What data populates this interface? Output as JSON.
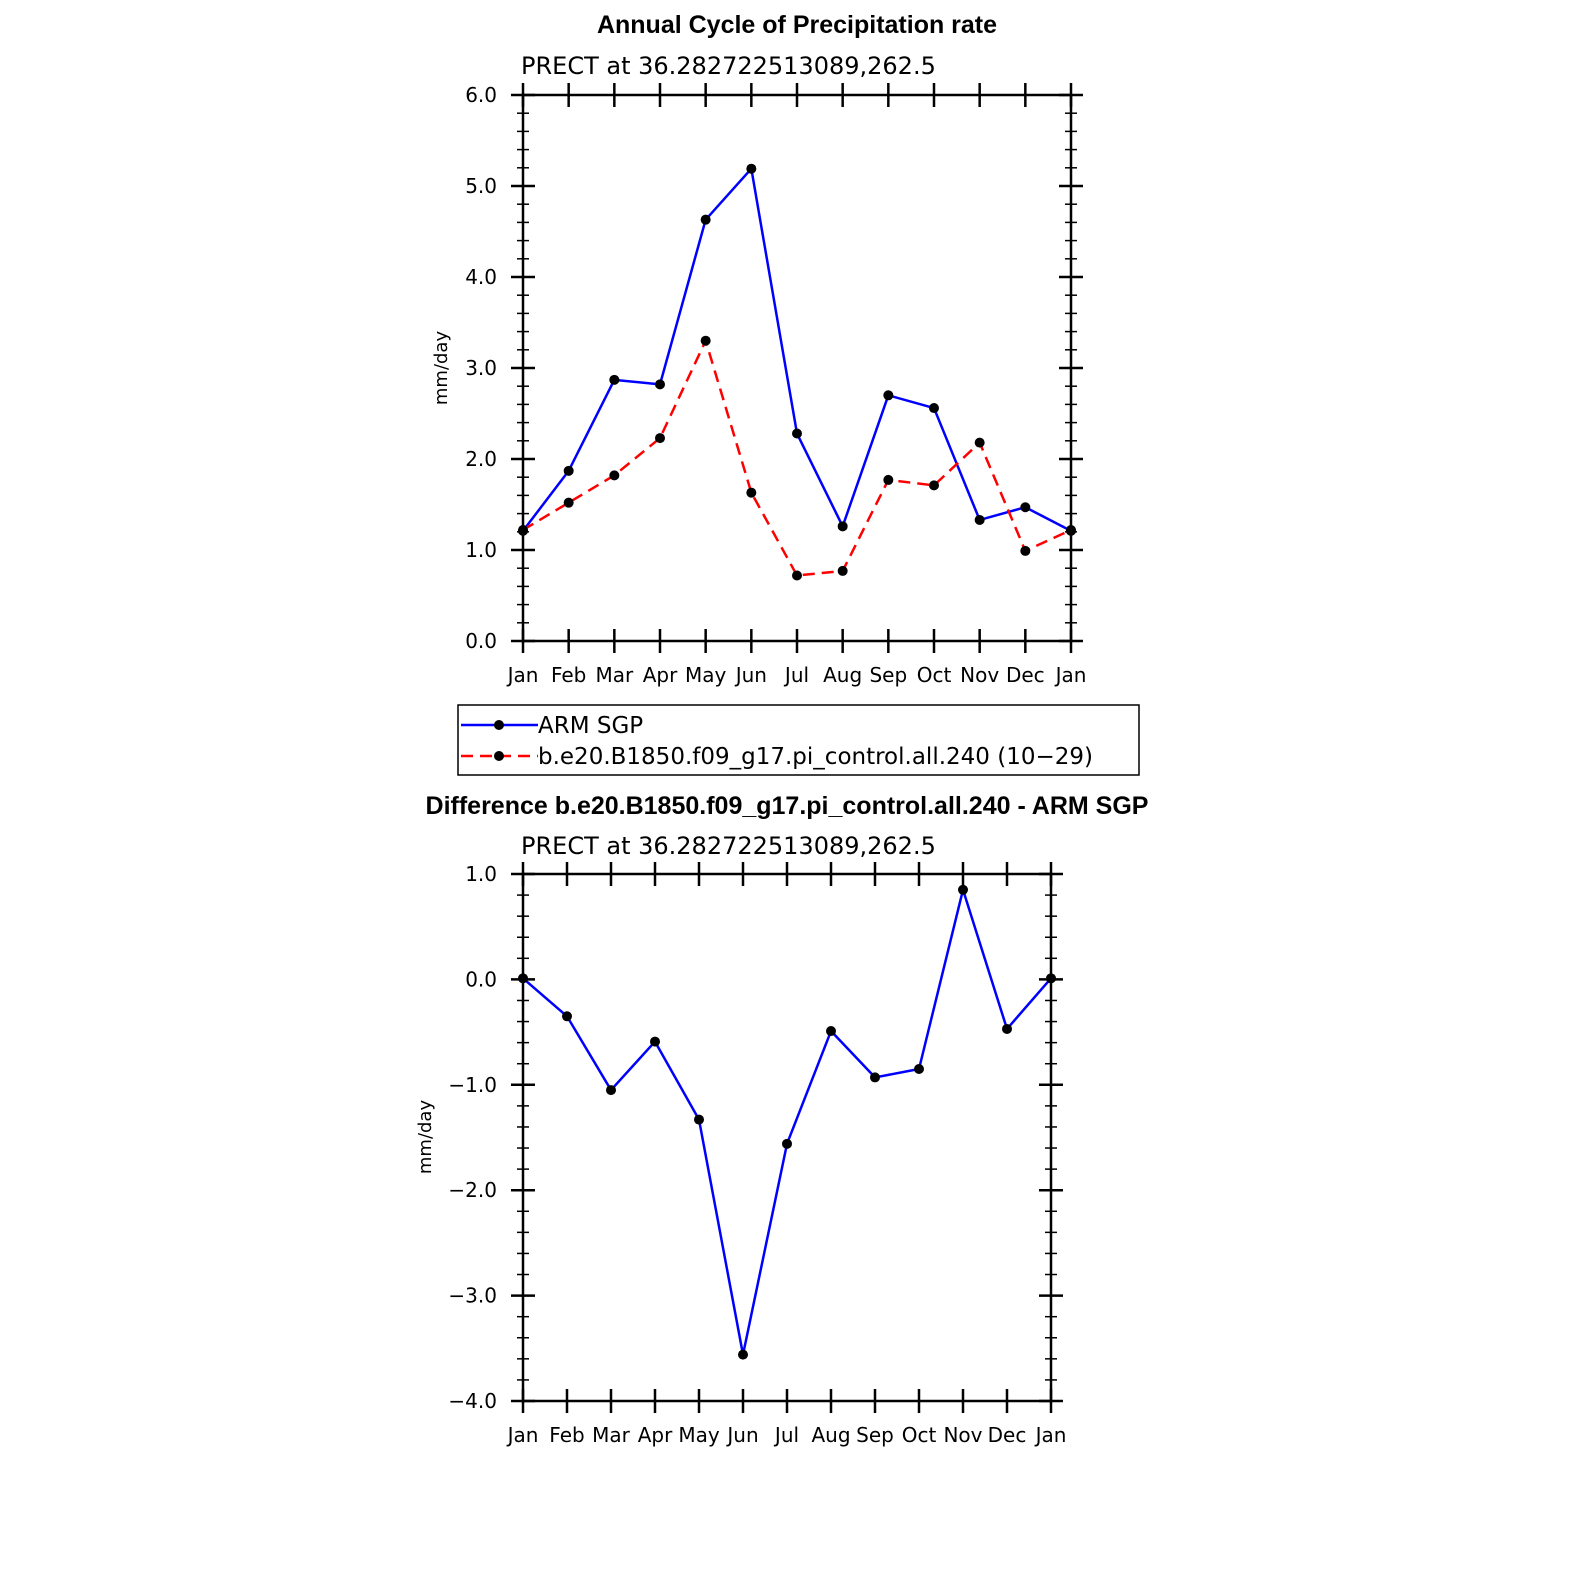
{
  "chart_data": [
    {
      "type": "line",
      "title": "Annual Cycle of Precipitation rate",
      "subtitle": "PRECT at 36.282722513089,262.5",
      "ylabel": "mm/day",
      "ylim": [
        0,
        6
      ],
      "yticks": [
        "0.0",
        "1.0",
        "2.0",
        "3.0",
        "4.0",
        "5.0",
        "6.0"
      ],
      "categories": [
        "Jan",
        "Feb",
        "Mar",
        "Apr",
        "May",
        "Jun",
        "Jul",
        "Aug",
        "Sep",
        "Oct",
        "Nov",
        "Dec",
        "Jan"
      ],
      "series": [
        {
          "name": "ARM SGP",
          "color": "#0000ff",
          "dash": false,
          "values": [
            1.21,
            1.87,
            2.87,
            2.82,
            4.63,
            5.19,
            2.28,
            1.26,
            2.7,
            2.56,
            1.33,
            1.47,
            1.21
          ]
        },
        {
          "name": "b.e20.B1850.f09_g17.pi_control.all.240 (10−29)",
          "color": "#ff0000",
          "dash": true,
          "values": [
            1.22,
            1.52,
            1.82,
            2.23,
            3.3,
            1.63,
            0.72,
            0.77,
            1.77,
            1.71,
            2.18,
            0.99,
            1.22
          ]
        }
      ],
      "legend_position": "below"
    },
    {
      "type": "line",
      "title": "Difference b.e20.B1850.f09_g17.pi_control.all.240 - ARM SGP",
      "subtitle": "PRECT at 36.282722513089,262.5",
      "ylabel": "mm/day",
      "ylim": [
        -4,
        1
      ],
      "yticks": [
        "−4.0",
        "−3.0",
        "−2.0",
        "−1.0",
        "0.0",
        "1.0"
      ],
      "categories": [
        "Jan",
        "Feb",
        "Mar",
        "Apr",
        "May",
        "Jun",
        "Jul",
        "Aug",
        "Sep",
        "Oct",
        "Nov",
        "Dec",
        "Jan"
      ],
      "series": [
        {
          "color": "#0000ff",
          "values": [
            0.01,
            -0.35,
            -1.05,
            -0.59,
            -1.33,
            -3.56,
            -1.56,
            -0.49,
            -0.93,
            -0.85,
            0.85,
            -0.47,
            0.01
          ]
        }
      ]
    }
  ]
}
